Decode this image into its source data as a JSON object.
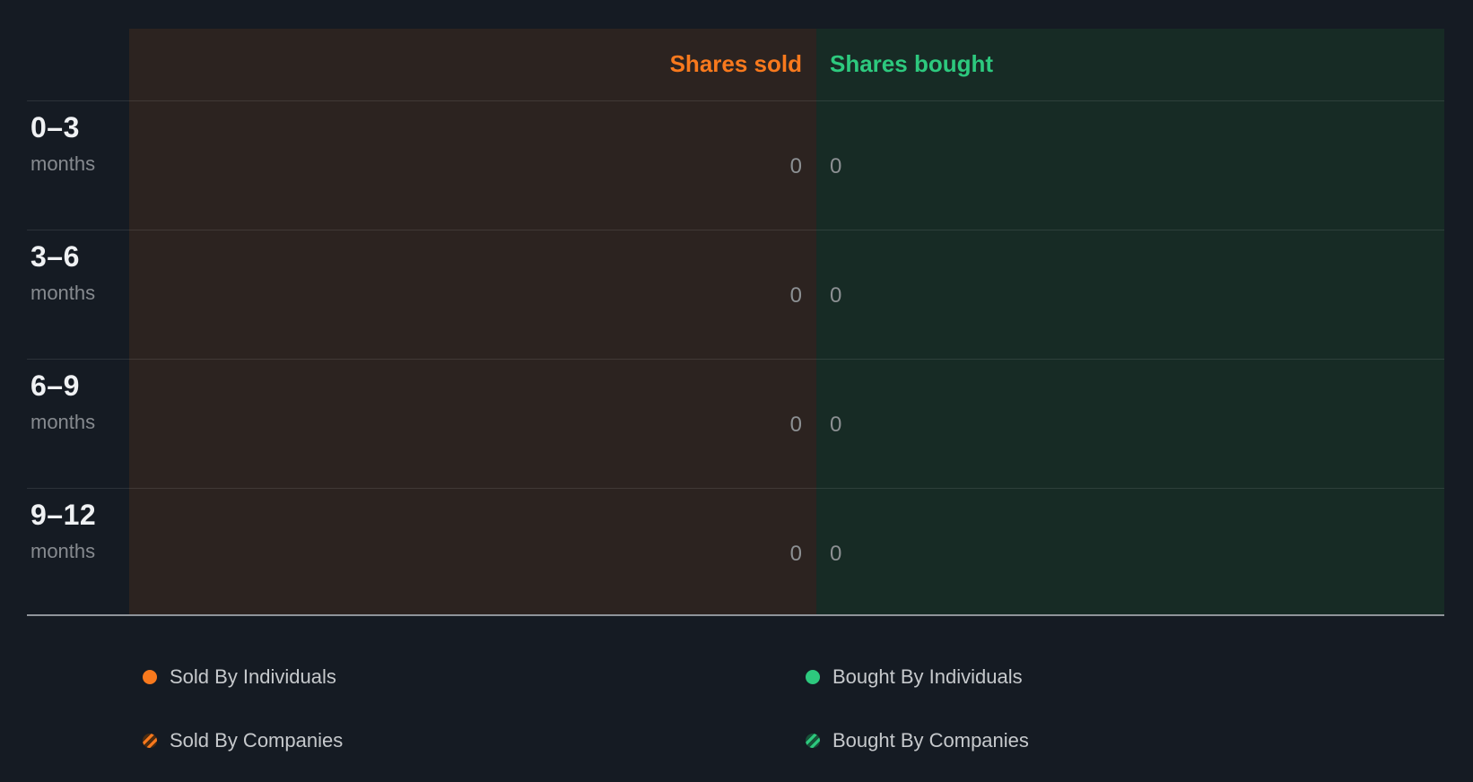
{
  "chart_data": {
    "type": "bar",
    "orientation": "horizontal",
    "title": "",
    "categories": [
      "0–3 months",
      "3–6 months",
      "6–9 months",
      "9–12 months"
    ],
    "series": [
      {
        "name": "Shares sold",
        "color": "#f8791d",
        "values": [
          0,
          0,
          0,
          0
        ]
      },
      {
        "name": "Shares bought",
        "color": "#2dc97e",
        "values": [
          0,
          0,
          0,
          0
        ]
      }
    ],
    "data_labels": true,
    "grid": true,
    "legend_position": "bottom",
    "legend": [
      "Sold By Individuals",
      "Sold By Companies",
      "Bought By Individuals",
      "Bought By Companies"
    ]
  },
  "header": {
    "sold_label": "Shares sold",
    "bought_label": "Shares bought"
  },
  "rows": [
    {
      "range": "0–3",
      "unit": "months",
      "sold": "0",
      "bought": "0"
    },
    {
      "range": "3–6",
      "unit": "months",
      "sold": "0",
      "bought": "0"
    },
    {
      "range": "6–9",
      "unit": "months",
      "sold": "0",
      "bought": "0"
    },
    {
      "range": "9–12",
      "unit": "months",
      "sold": "0",
      "bought": "0"
    }
  ],
  "legend": {
    "sold_individuals": "Sold By Individuals",
    "sold_companies": "Sold By Companies",
    "bought_individuals": "Bought By Individuals",
    "bought_companies": "Bought By Companies"
  },
  "icons": {
    "sold_individuals": "solid-orange-dot-icon",
    "sold_companies": "striped-orange-dot-icon",
    "bought_individuals": "solid-green-dot-icon",
    "bought_companies": "striped-green-dot-icon"
  },
  "colors": {
    "background": "#151b23",
    "sold_accent": "#f8791d",
    "bought_accent": "#2dc97e",
    "sold_region": "#2c2320",
    "bought_region": "#172b25",
    "value_text": "#8c9093",
    "axis_line": "#8f949a"
  }
}
